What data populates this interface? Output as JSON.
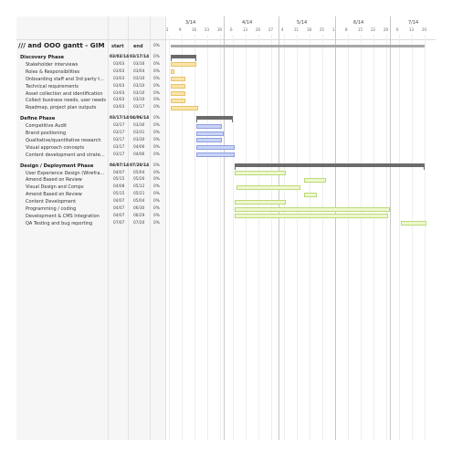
{
  "project": {
    "title": "/// and OOO gantt - GIM",
    "start": "start",
    "end": "end",
    "percent": "0%"
  },
  "columns": {
    "start": "start",
    "end": "end"
  },
  "timeline": {
    "months": [
      "3/14",
      "4/14",
      "5/14",
      "6/14",
      "7/14"
    ],
    "days": [
      "2",
      "9",
      "16",
      "23",
      "30",
      "6",
      "13",
      "20",
      "27",
      "4",
      "11",
      "18",
      "25",
      "1",
      "8",
      "15",
      "22",
      "29",
      "6",
      "13",
      "20"
    ]
  },
  "colors": {
    "discovery_fill": "#fbe5a8",
    "discovery_border": "#e6c36a",
    "define_fill": "#c9d3f5",
    "define_border": "#8fa0e0",
    "design_fill": "#eef8cf",
    "design_border": "#bcd97a",
    "summary": "#6b6b6b"
  },
  "phases": [
    {
      "name": "Discovery Phase",
      "start": "03/03/14",
      "end": "03/17/14",
      "percent": "0%",
      "tasks": [
        {
          "name": "Stakeholder interviews",
          "start": "03/03",
          "end": "03/16",
          "percent": "0%"
        },
        {
          "name": "Roles & Responsibilities",
          "start": "03/03",
          "end": "03/04",
          "percent": "0%"
        },
        {
          "name": "Onboarding staff and 3rd party tech ...",
          "start": "03/03",
          "end": "03/10",
          "percent": "0%"
        },
        {
          "name": "Technical requirements",
          "start": "03/03",
          "end": "03/10",
          "percent": "0%"
        },
        {
          "name": "Asset collection and identification",
          "start": "03/03",
          "end": "03/10",
          "percent": "0%"
        },
        {
          "name": "Collect business needs, user needs",
          "start": "03/03",
          "end": "03/10",
          "percent": "0%"
        },
        {
          "name": "Roadmap, project plan outputs",
          "start": "03/03",
          "end": "03/17",
          "percent": "0%"
        }
      ]
    },
    {
      "name": "Define Phase",
      "start": "03/17/14",
      "end": "04/06/14",
      "percent": "0%",
      "tasks": [
        {
          "name": "Competitive Audit",
          "start": "03/17",
          "end": "03/30",
          "percent": "0%"
        },
        {
          "name": "Brand positioning",
          "start": "03/17",
          "end": "03/31",
          "percent": "0%"
        },
        {
          "name": "Qualitative/quantitative research",
          "start": "03/17",
          "end": "03/30",
          "percent": "0%"
        },
        {
          "name": "Visual approach concepts",
          "start": "03/17",
          "end": "04/06",
          "percent": "0%"
        },
        {
          "name": "Content development and strategy g...",
          "start": "03/17",
          "end": "04/06",
          "percent": "0%"
        }
      ]
    },
    {
      "name": "Design / Deployment Phase",
      "start": "04/07/14",
      "end": "07/20/14",
      "percent": "0%",
      "tasks": [
        {
          "name": "User Experience Design (Wireframes,...",
          "start": "04/07",
          "end": "05/04",
          "percent": "0%"
        },
        {
          "name": "Amend Based on Review",
          "start": "05/15",
          "end": "05/26",
          "percent": "0%"
        },
        {
          "name": "Visual Design and Comps",
          "start": "04/08",
          "end": "05/12",
          "percent": "0%"
        },
        {
          "name": "Amend Based on Review",
          "start": "05/15",
          "end": "05/21",
          "percent": "0%"
        },
        {
          "name": "Content Development",
          "start": "04/07",
          "end": "05/04",
          "percent": "0%"
        },
        {
          "name": "Programming / coding",
          "start": "04/07",
          "end": "06/30",
          "percent": "0%"
        },
        {
          "name": "Development & CMS Integration",
          "start": "04/07",
          "end": "06/29",
          "percent": "0%"
        },
        {
          "name": "QA Testing and bug reporting",
          "start": "07/07",
          "end": "07/20",
          "percent": "0%"
        }
      ]
    }
  ]
}
